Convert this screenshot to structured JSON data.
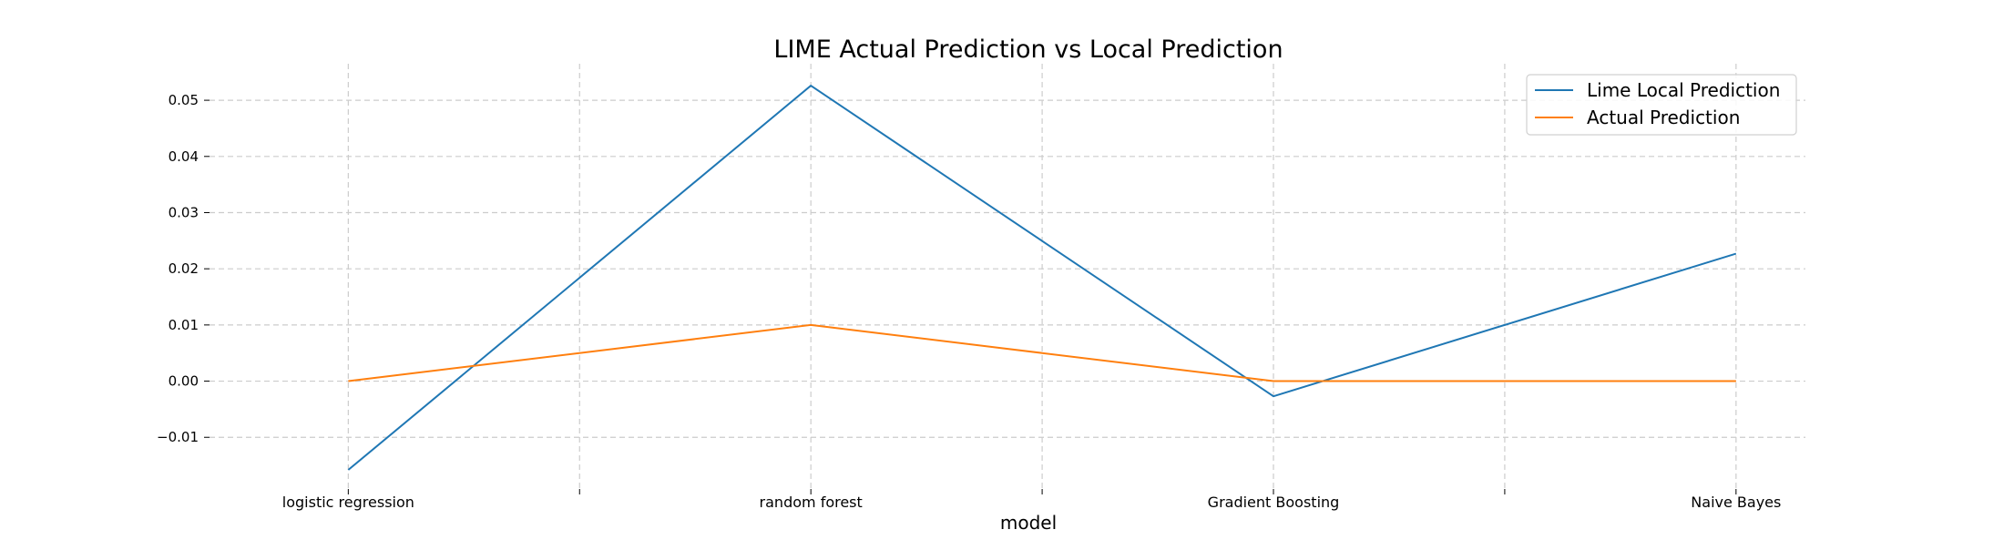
{
  "chart_data": {
    "type": "line",
    "title": "LIME Actual Prediction vs Local Prediction",
    "xlabel": "model",
    "ylabel": "",
    "categories": [
      "logistic regression",
      "random forest",
      "Gradient Boosting",
      "Naive Bayes"
    ],
    "series": [
      {
        "name": "Lime Local Prediction",
        "color": "#1f77b4",
        "values": [
          -0.0158,
          0.0526,
          -0.0027,
          0.0227
        ]
      },
      {
        "name": "Actual Prediction",
        "color": "#ff7f0e",
        "values": [
          0.0,
          0.01,
          0.0,
          0.0
        ]
      }
    ],
    "y_ticks": [
      -0.01,
      0.0,
      0.01,
      0.02,
      0.03,
      0.04,
      0.05
    ],
    "y_tick_labels": [
      "−0.01",
      "0.00",
      "0.01",
      "0.02",
      "0.03",
      "0.04",
      "0.05"
    ],
    "x_ticks": [
      0,
      0.5,
      1,
      1.5,
      2,
      2.5,
      3
    ],
    "ylim": [
      -0.0192,
      0.0565
    ],
    "xlim": [
      -0.3,
      3.15
    ],
    "grid": true,
    "grid_style": "dashed",
    "legend_position": "top-right"
  }
}
